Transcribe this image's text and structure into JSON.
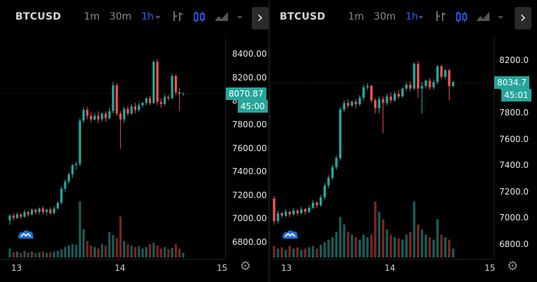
{
  "colors": {
    "up": "#26a69a",
    "down": "#ef5350",
    "vol_up": "#1b5b55",
    "vol_down": "#7a2523",
    "accent": "#2962ff",
    "badge": "#26a69a"
  },
  "panels": [
    {
      "symbol": "BTCUSD",
      "intervals": [
        {
          "label": "1m",
          "active": false
        },
        {
          "label": "30m",
          "active": false
        },
        {
          "label": "1h",
          "active": true
        }
      ],
      "toolbar_icons": [
        "chevron-down-icon",
        "indicators-icon",
        "candles-icon",
        "area-chart-icon",
        "chevron-down-icon",
        "chevron-right-icon"
      ],
      "price_ticks": [
        "8400.00",
        "8200.00",
        "8000.00",
        "7800.00",
        "7600.00",
        "7400.00",
        "7200.00",
        "7000.00",
        "6800.00"
      ],
      "date_ticks": [
        "13",
        "14",
        "15"
      ],
      "last_price": "8070.87",
      "countdown": "45:00"
    },
    {
      "symbol": "BTCUSD",
      "intervals": [
        {
          "label": "1m",
          "active": false
        },
        {
          "label": "30m",
          "active": false
        },
        {
          "label": "1h",
          "active": true
        }
      ],
      "toolbar_icons": [
        "chevron-down-icon",
        "indicators-icon",
        "candles-icon",
        "area-chart-icon",
        "chevron-down-icon",
        "chevron-right-icon"
      ],
      "price_ticks": [
        "8200.0",
        "8000.0",
        "7800.0",
        "7600.0",
        "7400.0",
        "7200.0",
        "7000.0",
        "6800.0"
      ],
      "date_ticks": [
        "13",
        "14",
        "15"
      ],
      "last_price": "8034.7",
      "countdown": "45:01"
    }
  ],
  "chart_data": [
    {
      "type": "candlestick",
      "title": "BTCUSD",
      "xlabel": "",
      "ylabel": "",
      "x_ticks": [
        "13",
        "14",
        "15"
      ],
      "ylim": [
        6750,
        8450
      ],
      "last_price": 8070.87,
      "candles": [
        [
          6990,
          7030,
          6950,
          7040
        ],
        [
          7030,
          7010,
          6990,
          7050
        ],
        [
          7010,
          7040,
          7000,
          7060
        ],
        [
          7040,
          7020,
          7000,
          7050
        ],
        [
          7020,
          7060,
          7010,
          7080
        ],
        [
          7060,
          7040,
          7020,
          7070
        ],
        [
          7040,
          7080,
          7030,
          7090
        ],
        [
          7080,
          7060,
          7040,
          7090
        ],
        [
          7060,
          7090,
          7040,
          7100
        ],
        [
          7090,
          7060,
          7040,
          7110
        ],
        [
          7060,
          7080,
          7030,
          7090
        ],
        [
          7080,
          7050,
          7040,
          7100
        ],
        [
          7050,
          7090,
          7040,
          7110
        ],
        [
          7090,
          7140,
          7080,
          7150
        ],
        [
          7140,
          7260,
          7120,
          7280
        ],
        [
          7260,
          7320,
          7230,
          7340
        ],
        [
          7320,
          7380,
          7300,
          7400
        ],
        [
          7380,
          7460,
          7350,
          7470
        ],
        [
          7460,
          7470,
          7420,
          7490
        ],
        [
          7470,
          7840,
          7450,
          7860
        ],
        [
          7840,
          7930,
          7820,
          7950
        ],
        [
          7930,
          7880,
          7850,
          7960
        ],
        [
          7880,
          7850,
          7820,
          7910
        ],
        [
          7850,
          7880,
          7840,
          7900
        ],
        [
          7880,
          7850,
          7820,
          7920
        ],
        [
          7850,
          7900,
          7830,
          7910
        ],
        [
          7900,
          7860,
          7830,
          7920
        ],
        [
          7860,
          7920,
          7850,
          7950
        ],
        [
          7920,
          8140,
          7900,
          8170
        ],
        [
          8140,
          7900,
          7880,
          8160
        ],
        [
          7900,
          7850,
          7600,
          7920
        ],
        [
          7850,
          7940,
          7820,
          7960
        ],
        [
          7940,
          7900,
          7880,
          7960
        ],
        [
          7900,
          7960,
          7890,
          7980
        ],
        [
          7960,
          7930,
          7900,
          7990
        ],
        [
          7930,
          7970,
          7910,
          7990
        ],
        [
          7970,
          7990,
          7950,
          8000
        ],
        [
          7990,
          8030,
          7970,
          8040
        ],
        [
          8030,
          7990,
          7970,
          8050
        ],
        [
          7990,
          8340,
          7980,
          8350
        ],
        [
          8340,
          8000,
          7970,
          8360
        ],
        [
          8000,
          7980,
          7950,
          8030
        ],
        [
          7980,
          8040,
          7970,
          8060
        ],
        [
          8040,
          8030,
          8010,
          8060
        ],
        [
          8030,
          8220,
          8020,
          8240
        ],
        [
          8220,
          8080,
          8060,
          8230
        ],
        [
          8080,
          8070,
          7920,
          8120
        ],
        [
          8070,
          8071,
          8050,
          8080
        ]
      ],
      "volume": [
        12,
        7,
        8,
        6,
        9,
        7,
        8,
        6,
        7,
        8,
        6,
        7,
        8,
        9,
        11,
        14,
        16,
        18,
        17,
        75,
        38,
        22,
        16,
        14,
        12,
        18,
        16,
        34,
        30,
        26,
        55,
        22,
        18,
        16,
        14,
        15,
        12,
        14,
        18,
        20,
        16,
        12,
        14,
        11,
        13,
        18,
        12,
        6
      ]
    },
    {
      "type": "candlestick",
      "title": "BTCUSD",
      "xlabel": "",
      "ylabel": "",
      "x_ticks": [
        "13",
        "14",
        "15"
      ],
      "ylim": [
        6760,
        8260
      ],
      "last_price": 8034.7,
      "candles": [
        [
          7150,
          6980,
          6950,
          7170
        ],
        [
          6980,
          7040,
          6960,
          7060
        ],
        [
          7040,
          7020,
          7000,
          7050
        ],
        [
          7020,
          7050,
          7010,
          7070
        ],
        [
          7050,
          7030,
          7010,
          7060
        ],
        [
          7030,
          7060,
          7020,
          7080
        ],
        [
          7060,
          7040,
          7020,
          7070
        ],
        [
          7040,
          7070,
          7030,
          7090
        ],
        [
          7070,
          7050,
          7030,
          7080
        ],
        [
          7050,
          7080,
          7040,
          7100
        ],
        [
          7080,
          7120,
          7070,
          7140
        ],
        [
          7120,
          7100,
          7080,
          7130
        ],
        [
          7100,
          7160,
          7090,
          7180
        ],
        [
          7160,
          7250,
          7140,
          7270
        ],
        [
          7250,
          7310,
          7230,
          7330
        ],
        [
          7310,
          7390,
          7290,
          7410
        ],
        [
          7390,
          7460,
          7370,
          7480
        ],
        [
          7460,
          7830,
          7440,
          7850
        ],
        [
          7830,
          7880,
          7810,
          7900
        ],
        [
          7880,
          7860,
          7840,
          7910
        ],
        [
          7860,
          7890,
          7850,
          7900
        ],
        [
          7890,
          7870,
          7840,
          7910
        ],
        [
          7870,
          7920,
          7860,
          7940
        ],
        [
          7920,
          8000,
          7900,
          8020
        ],
        [
          8000,
          8010,
          7980,
          8030
        ],
        [
          8010,
          7900,
          7880,
          8020
        ],
        [
          7900,
          7840,
          7800,
          7920
        ],
        [
          7840,
          7910,
          7800,
          7930
        ],
        [
          7910,
          7880,
          7650,
          7930
        ],
        [
          7880,
          7930,
          7860,
          7950
        ],
        [
          7930,
          7900,
          7880,
          7960
        ],
        [
          7900,
          7950,
          7890,
          7970
        ],
        [
          7950,
          7930,
          7910,
          7980
        ],
        [
          7930,
          7990,
          7920,
          8000
        ],
        [
          7990,
          8020,
          7970,
          8040
        ],
        [
          8020,
          7990,
          7970,
          8050
        ],
        [
          7990,
          8180,
          7980,
          8190
        ],
        [
          8180,
          7990,
          7920,
          8200
        ],
        [
          7990,
          8010,
          7800,
          8040
        ],
        [
          8010,
          8050,
          7990,
          8060
        ],
        [
          8050,
          8000,
          7980,
          8070
        ],
        [
          8000,
          8040,
          7980,
          8060
        ],
        [
          8040,
          8160,
          8020,
          8170
        ],
        [
          8160,
          8080,
          8060,
          8170
        ],
        [
          8080,
          8130,
          8060,
          8140
        ],
        [
          8130,
          8010,
          7900,
          8140
        ],
        [
          8010,
          8040,
          8000,
          8050
        ]
      ],
      "volume": [
        9,
        7,
        8,
        6,
        9,
        7,
        8,
        6,
        7,
        8,
        9,
        7,
        10,
        12,
        14,
        16,
        20,
        32,
        26,
        20,
        18,
        16,
        14,
        18,
        16,
        18,
        44,
        36,
        30,
        22,
        18,
        16,
        15,
        14,
        18,
        20,
        44,
        26,
        22,
        18,
        16,
        14,
        30,
        18,
        16,
        14,
        7
      ]
    }
  ]
}
